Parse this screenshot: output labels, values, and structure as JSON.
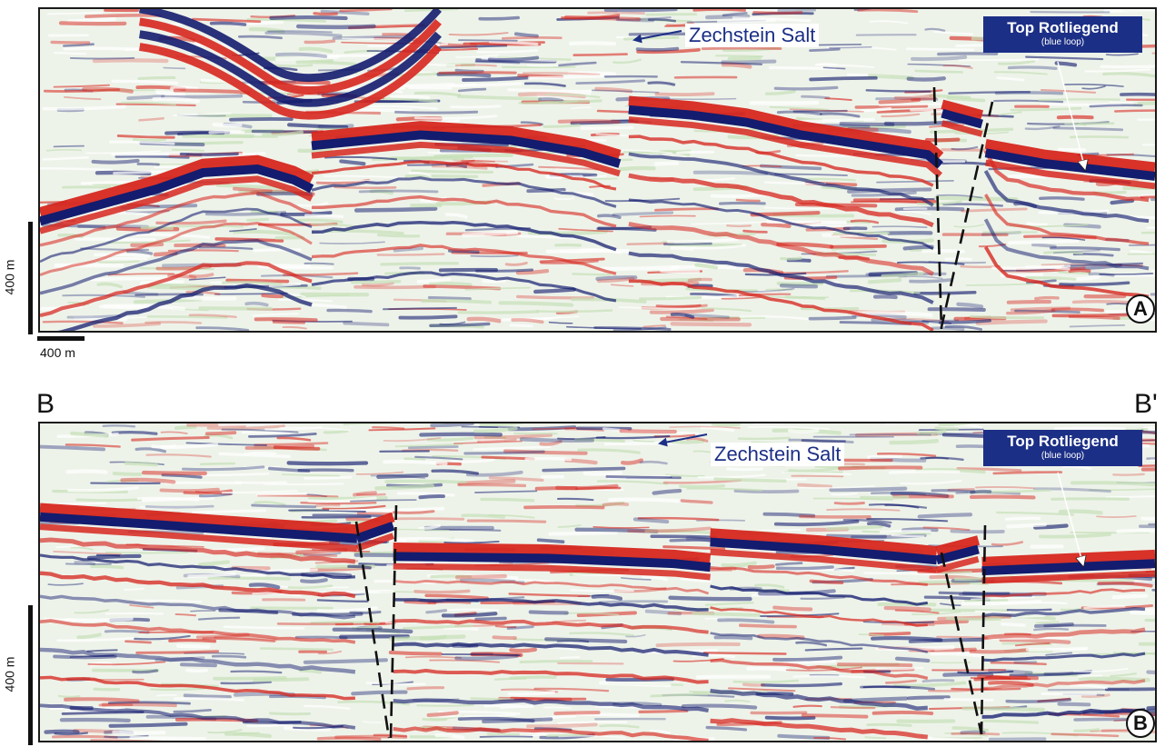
{
  "panel_a": {
    "salt_label": "Zechstein Salt",
    "horizon_title": "Top Rotliegend",
    "horizon_subtitle": "(blue loop)",
    "letter": "A"
  },
  "panel_b": {
    "start_label": "B",
    "end_label": "B'",
    "salt_label": "Zechstein Salt",
    "horizon_title": "Top Rotliegend",
    "horizon_subtitle": "(blue loop)",
    "letter": "B"
  },
  "scale": {
    "vertical_a": "400 m",
    "horizontal_a": "400 m",
    "vertical_b": "400 m"
  },
  "colors": {
    "positive": "#d6271f",
    "negative": "#131c6e",
    "weak": "#c6dfb8",
    "frame": "#1a1a1a",
    "label_box": "#1c2f86"
  }
}
